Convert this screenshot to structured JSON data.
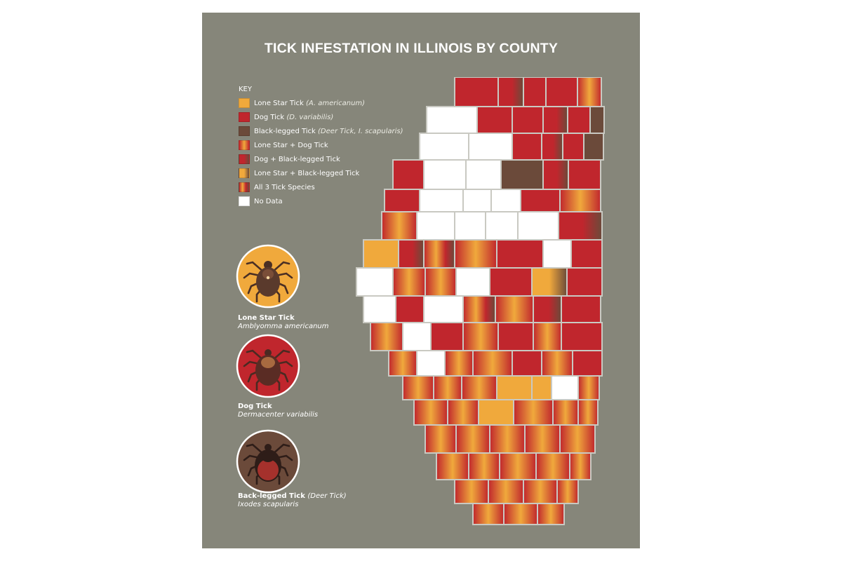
{
  "title": "TICK INFESTATION IN ILLINOIS BY COUNTY",
  "key": {
    "heading": "KEY",
    "items": [
      {
        "label": "Lone Star Tick",
        "detail": "(A. americanum)",
        "swatch": "lonestar"
      },
      {
        "label": "Dog Tick",
        "detail": "(D. variabilis)",
        "swatch": "dog"
      },
      {
        "label": "Black-legged Tick",
        "detail": "(Deer Tick, I. scapularis)",
        "swatch": "black"
      },
      {
        "label": "Lone Star + Dog Tick",
        "detail": "",
        "swatch": "ls_dog"
      },
      {
        "label": "Dog + Black-legged Tick",
        "detail": "",
        "swatch": "dog_bl"
      },
      {
        "label": "Lone Star + Black-legged Tick",
        "detail": "",
        "swatch": "ls_bl"
      },
      {
        "label": "All 3 Tick Species",
        "detail": "",
        "swatch": "all3"
      },
      {
        "label": "No Data",
        "detail": "",
        "swatch": "none"
      }
    ]
  },
  "ticks": [
    {
      "name": "Lone Star Tick",
      "name_extra": "",
      "scientific": "Amblyomma americanum",
      "icon": "lone-star-tick-icon"
    },
    {
      "name": "Dog Tick",
      "name_extra": "",
      "scientific": "Dermacenter variabilis",
      "icon": "dog-tick-icon"
    },
    {
      "name": "Back-legged Tick",
      "name_extra": "(Deer Tick)",
      "scientific": "Ixodes scapularis",
      "icon": "black-legged-tick-icon"
    }
  ],
  "colors": {
    "background": "#86867a",
    "lone_star": "#f0a93c",
    "dog": "#c0262d",
    "black_legged": "#6b4a3a",
    "no_data": "#ffffff",
    "border": "#c9c9c2"
  }
}
